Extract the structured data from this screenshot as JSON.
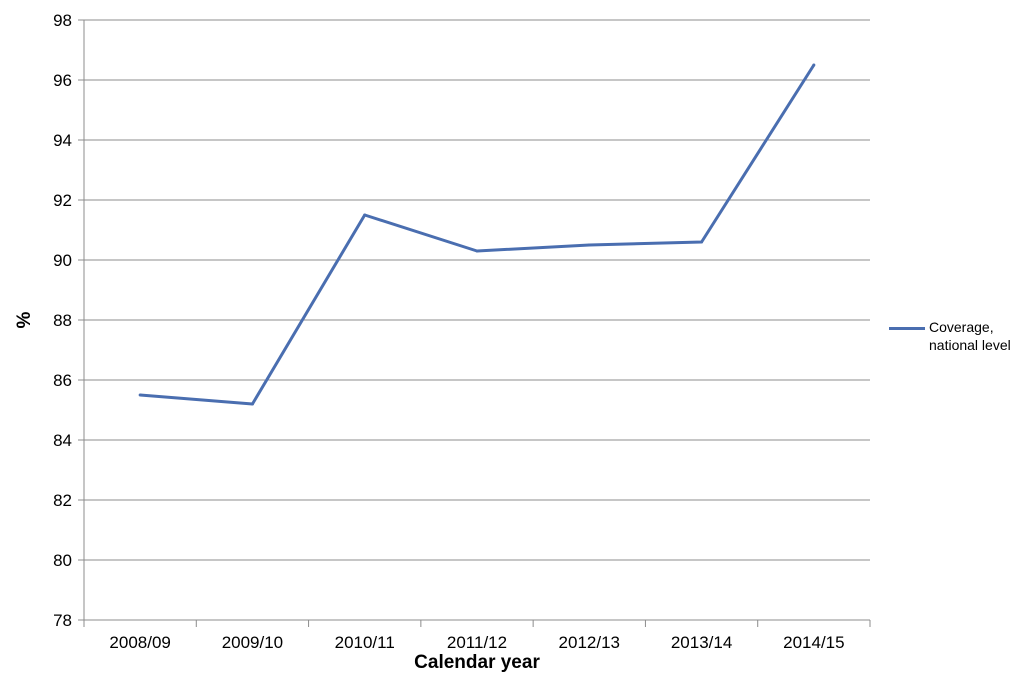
{
  "chart_data": {
    "type": "line",
    "title": "",
    "xlabel": "Calendar year",
    "ylabel": "%",
    "categories": [
      "2008/09",
      "2009/10",
      "2010/11",
      "2011/12",
      "2012/13",
      "2013/14",
      "2014/15"
    ],
    "series": [
      {
        "name": "Coverage, national level",
        "values": [
          85.5,
          85.2,
          91.5,
          90.3,
          90.5,
          90.6,
          96.5
        ],
        "color": "#4a6eb0"
      }
    ],
    "ylim": [
      78,
      98
    ],
    "yticks": [
      78,
      80,
      82,
      84,
      86,
      88,
      90,
      92,
      94,
      96,
      98
    ],
    "grid": true,
    "legend": {
      "position": "right",
      "lines": [
        "Coverage,",
        "national level"
      ]
    }
  }
}
